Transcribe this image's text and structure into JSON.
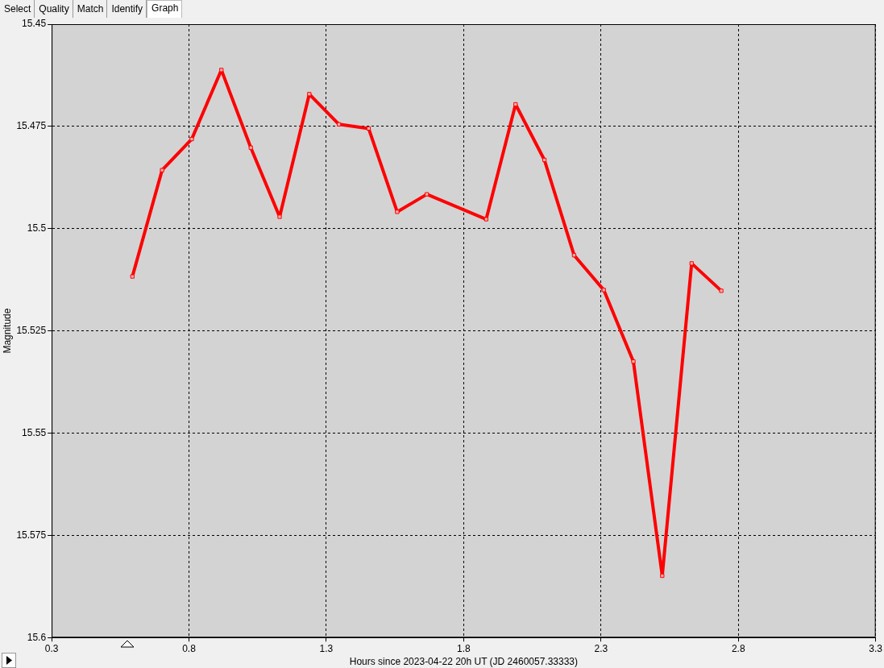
{
  "chart_data": {
    "type": "line",
    "xlabel": "Hours since 2023-04-22 20h UT (JD 2460057.33333)",
    "ylabel": "Magnitude",
    "annotations": [
      "Select",
      "Quality",
      "Match",
      "Identify",
      "Graph"
    ],
    "x": [
      0.594,
      0.702,
      0.81,
      0.918,
      1.025,
      1.13,
      1.238,
      1.346,
      1.454,
      1.558,
      1.666,
      1.882,
      1.989,
      2.094,
      2.202,
      2.31,
      2.418,
      2.523,
      2.63,
      2.738
    ],
    "series": [
      {
        "color": "#ff0000",
        "values": [
          15.5117,
          15.4857,
          15.4781,
          15.4612,
          15.4802,
          15.4971,
          15.4671,
          15.4745,
          15.4755,
          15.4959,
          15.4916,
          15.4977,
          15.4696,
          15.4832,
          15.5065,
          15.515,
          15.5325,
          15.5849,
          15.5085,
          15.5152
        ]
      }
    ],
    "xlim": [
      0.3,
      3.3
    ],
    "xticks": [
      0.3,
      0.8,
      1.3,
      1.8,
      2.3,
      2.8,
      3.3
    ],
    "ylim": [
      15.6,
      15.45
    ],
    "yticks": [
      15.45,
      15.475,
      15.5,
      15.525,
      15.55,
      15.575,
      15.6
    ],
    "grid": true,
    "legend": false,
    "marker": "square",
    "line_style": "solid"
  }
}
